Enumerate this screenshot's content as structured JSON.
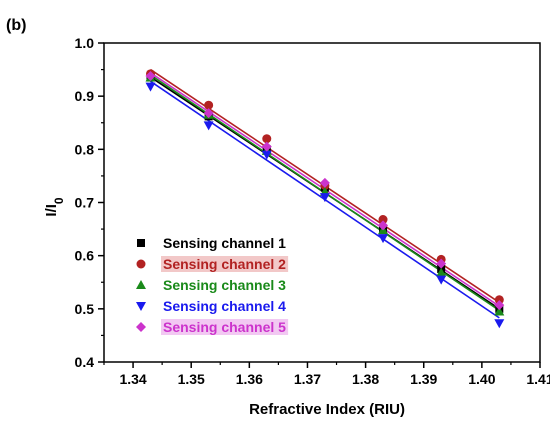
{
  "chart_data": {
    "type": "scatter",
    "panel_label": "(b)",
    "xlabel": "Refractive Index (RIU)",
    "ylabel_main": "I/I",
    "ylabel_sub": "0",
    "xlim": [
      1.335,
      1.41
    ],
    "ylim": [
      0.4,
      1.0
    ],
    "xticks": [
      "1.34",
      "1.35",
      "1.36",
      "1.37",
      "1.38",
      "1.39",
      "1.40",
      "1.41"
    ],
    "yticks": [
      "0.4",
      "0.5",
      "0.6",
      "0.7",
      "0.8",
      "0.9",
      "1.0"
    ],
    "grid": false,
    "legend_position": "bottom-left",
    "x": [
      1.343,
      1.353,
      1.363,
      1.373,
      1.383,
      1.393,
      1.403
    ],
    "series": [
      {
        "name": "Sensing channel 1",
        "color": "#000000",
        "marker": "square",
        "values": [
          0.935,
          0.862,
          0.8,
          0.728,
          0.65,
          0.575,
          0.5
        ],
        "fit": [
          0.936,
          0.5
        ]
      },
      {
        "name": "Sensing channel 2",
        "color": "#b22222",
        "marker": "circle",
        "values": [
          0.942,
          0.883,
          0.82,
          0.732,
          0.668,
          0.593,
          0.517
        ],
        "fit": [
          0.95,
          0.512
        ]
      },
      {
        "name": "Sensing channel 3",
        "color": "#1a8a1a",
        "marker": "triangle-up",
        "values": [
          0.935,
          0.865,
          0.797,
          0.72,
          0.648,
          0.568,
          0.495
        ],
        "fit": [
          0.94,
          0.497
        ]
      },
      {
        "name": "Sensing channel 4",
        "color": "#1a1aee",
        "marker": "triangle-down",
        "values": [
          0.918,
          0.845,
          0.79,
          0.71,
          0.633,
          0.555,
          0.473
        ],
        "fit": [
          0.928,
          0.483
        ]
      },
      {
        "name": "Sensing channel 5",
        "color": "#cc33cc",
        "marker": "diamond",
        "values": [
          0.938,
          0.868,
          0.805,
          0.737,
          0.657,
          0.585,
          0.507
        ],
        "fit": [
          0.944,
          0.505
        ]
      }
    ],
    "legend_text_colors": [
      "#000000",
      "#b22222",
      "#1a8a1a",
      "#1a1aee",
      "#cc33cc"
    ],
    "legend_text_highlight": [
      "",
      "#f2c8c8",
      "",
      "",
      "#f2c8f2"
    ]
  }
}
